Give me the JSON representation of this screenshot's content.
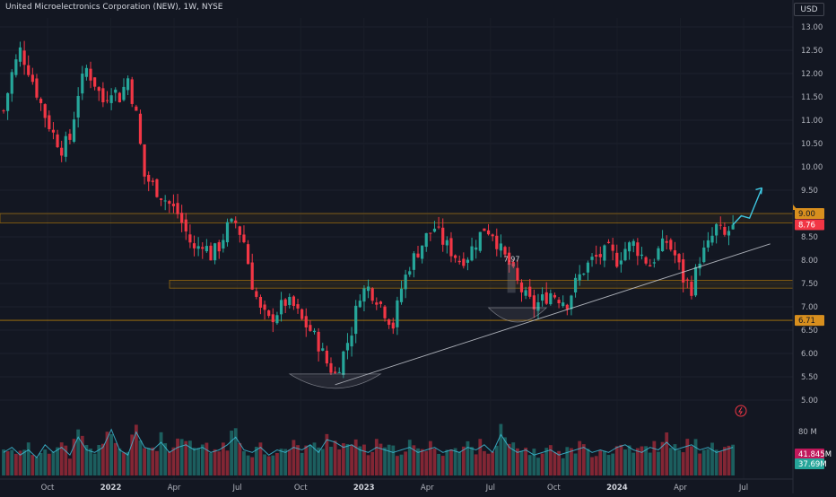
{
  "header": {
    "title": "United Microelectronics Corporation (NEW), 1W, NYSE",
    "currency": "USD"
  },
  "colors": {
    "background": "#131722",
    "up": "#26a69a",
    "down": "#f23645",
    "zone": "#f7a600",
    "trendline": "#d1d4dc",
    "projection": "#3ec6e0",
    "vol_ma": "#3ec6e0"
  },
  "chart_data": {
    "type": "candlestick",
    "timeframe": "1W",
    "price_axis": {
      "ticks": [
        "13.00",
        "12.50",
        "12.00",
        "11.50",
        "11.00",
        "10.50",
        "10.00",
        "9.50",
        "9.00",
        "8.50",
        "8.00",
        "7.50",
        "7.00",
        "6.50",
        "6.00",
        "5.50",
        "5.00"
      ],
      "range": [
        4.55,
        13.25
      ]
    },
    "time_axis": {
      "ticks": [
        {
          "label": "Oct",
          "bold": false
        },
        {
          "label": "2022",
          "bold": true
        },
        {
          "label": "Apr",
          "bold": false
        },
        {
          "label": "Jul",
          "bold": false
        },
        {
          "label": "Oct",
          "bold": false
        },
        {
          "label": "2023",
          "bold": true
        },
        {
          "label": "Apr",
          "bold": false
        },
        {
          "label": "Jul",
          "bold": false
        },
        {
          "label": "Oct",
          "bold": false
        },
        {
          "label": "2024",
          "bold": true
        },
        {
          "label": "Apr",
          "bold": false
        },
        {
          "label": "Jul",
          "bold": false
        }
      ]
    },
    "price_path": [
      [
        0,
        11.2
      ],
      [
        2,
        12.0
      ],
      [
        4,
        12.5
      ],
      [
        6,
        12.1
      ],
      [
        8,
        11.6
      ],
      [
        10,
        11.1
      ],
      [
        12,
        10.7
      ],
      [
        14,
        10.4
      ],
      [
        16,
        10.6
      ],
      [
        18,
        11.6
      ],
      [
        20,
        12.1
      ],
      [
        22,
        11.8
      ],
      [
        24,
        11.4
      ],
      [
        26,
        11.7
      ],
      [
        28,
        11.5
      ],
      [
        30,
        11.9
      ],
      [
        32,
        11.1
      ],
      [
        34,
        9.8
      ],
      [
        36,
        9.6
      ],
      [
        38,
        9.4
      ],
      [
        40,
        9.2
      ],
      [
        42,
        9.0
      ],
      [
        44,
        8.6
      ],
      [
        46,
        8.2
      ],
      [
        48,
        8.4
      ],
      [
        50,
        8.1
      ],
      [
        52,
        8.3
      ],
      [
        54,
        8.7
      ],
      [
        56,
        8.8
      ],
      [
        58,
        8.4
      ],
      [
        60,
        7.5
      ],
      [
        62,
        6.9
      ],
      [
        64,
        6.7
      ],
      [
        66,
        6.9
      ],
      [
        68,
        7.1
      ],
      [
        70,
        7.0
      ],
      [
        72,
        6.7
      ],
      [
        74,
        6.5
      ],
      [
        76,
        6.2
      ],
      [
        78,
        5.8
      ],
      [
        80,
        5.55
      ],
      [
        82,
        6.0
      ],
      [
        84,
        6.5
      ],
      [
        86,
        7.3
      ],
      [
        88,
        7.4
      ],
      [
        90,
        7.2
      ],
      [
        92,
        6.9
      ],
      [
        94,
        6.6
      ],
      [
        96,
        7.4
      ],
      [
        98,
        7.9
      ],
      [
        100,
        8.2
      ],
      [
        102,
        8.5
      ],
      [
        104,
        8.7
      ],
      [
        106,
        8.4
      ],
      [
        108,
        8.2
      ],
      [
        110,
        8.0
      ],
      [
        112,
        8.1
      ],
      [
        114,
        8.4
      ],
      [
        116,
        8.7
      ],
      [
        118,
        8.6
      ],
      [
        120,
        8.2
      ],
      [
        122,
        7.9
      ],
      [
        124,
        7.5
      ],
      [
        126,
        7.2
      ],
      [
        128,
        7.0
      ],
      [
        130,
        7.15
      ],
      [
        132,
        7.3
      ],
      [
        134,
        7.2
      ],
      [
        136,
        7.1
      ],
      [
        138,
        7.5
      ],
      [
        140,
        7.8
      ],
      [
        142,
        8.0
      ],
      [
        144,
        8.1
      ],
      [
        146,
        8.2
      ],
      [
        148,
        8.0
      ],
      [
        150,
        8.25
      ],
      [
        152,
        8.35
      ],
      [
        154,
        8.1
      ],
      [
        156,
        7.9
      ],
      [
        158,
        8.2
      ],
      [
        160,
        8.4
      ],
      [
        162,
        8.1
      ],
      [
        164,
        7.6
      ],
      [
        166,
        7.4
      ],
      [
        168,
        8.05
      ],
      [
        170,
        8.3
      ],
      [
        172,
        8.7
      ],
      [
        174,
        8.5
      ],
      [
        176,
        8.76
      ]
    ],
    "volume_path": [
      [
        0,
        0.45
      ],
      [
        2,
        0.55
      ],
      [
        4,
        0.4
      ],
      [
        6,
        0.5
      ],
      [
        8,
        0.35
      ],
      [
        10,
        0.6
      ],
      [
        12,
        0.45
      ],
      [
        14,
        0.55
      ],
      [
        16,
        0.4
      ],
      [
        18,
        0.75
      ],
      [
        20,
        0.5
      ],
      [
        22,
        0.45
      ],
      [
        24,
        0.55
      ],
      [
        26,
        0.9
      ],
      [
        28,
        0.5
      ],
      [
        30,
        0.4
      ],
      [
        32,
        0.85
      ],
      [
        34,
        0.55
      ],
      [
        36,
        0.5
      ],
      [
        38,
        0.65
      ],
      [
        40,
        0.45
      ],
      [
        42,
        0.55
      ],
      [
        44,
        0.6
      ],
      [
        46,
        0.5
      ],
      [
        48,
        0.55
      ],
      [
        50,
        0.45
      ],
      [
        52,
        0.5
      ],
      [
        54,
        0.6
      ],
      [
        56,
        0.75
      ],
      [
        58,
        0.5
      ],
      [
        60,
        0.45
      ],
      [
        62,
        0.55
      ],
      [
        64,
        0.4
      ],
      [
        66,
        0.5
      ],
      [
        68,
        0.45
      ],
      [
        70,
        0.55
      ],
      [
        72,
        0.5
      ],
      [
        74,
        0.6
      ],
      [
        76,
        0.45
      ],
      [
        78,
        0.7
      ],
      [
        80,
        0.65
      ],
      [
        82,
        0.55
      ],
      [
        84,
        0.6
      ],
      [
        86,
        0.5
      ],
      [
        88,
        0.45
      ],
      [
        90,
        0.55
      ],
      [
        92,
        0.5
      ],
      [
        94,
        0.45
      ],
      [
        96,
        0.5
      ],
      [
        98,
        0.55
      ],
      [
        100,
        0.45
      ],
      [
        102,
        0.5
      ],
      [
        104,
        0.55
      ],
      [
        106,
        0.45
      ],
      [
        108,
        0.5
      ],
      [
        110,
        0.45
      ],
      [
        112,
        0.55
      ],
      [
        114,
        0.5
      ],
      [
        116,
        0.6
      ],
      [
        118,
        0.45
      ],
      [
        120,
        0.8
      ],
      [
        122,
        0.55
      ],
      [
        124,
        0.45
      ],
      [
        126,
        0.5
      ],
      [
        128,
        0.4
      ],
      [
        130,
        0.45
      ],
      [
        132,
        0.5
      ],
      [
        134,
        0.4
      ],
      [
        136,
        0.45
      ],
      [
        138,
        0.5
      ],
      [
        140,
        0.55
      ],
      [
        142,
        0.45
      ],
      [
        144,
        0.5
      ],
      [
        146,
        0.45
      ],
      [
        148,
        0.55
      ],
      [
        150,
        0.6
      ],
      [
        152,
        0.5
      ],
      [
        154,
        0.45
      ],
      [
        156,
        0.55
      ],
      [
        158,
        0.5
      ],
      [
        160,
        0.65
      ],
      [
        162,
        0.5
      ],
      [
        164,
        0.55
      ],
      [
        166,
        0.6
      ],
      [
        168,
        0.5
      ],
      [
        170,
        0.55
      ],
      [
        172,
        0.45
      ],
      [
        174,
        0.5
      ],
      [
        176,
        0.55
      ]
    ],
    "volume_axis": {
      "label": "80 M",
      "volume_badge": "41.845M",
      "ma_badge": "37.69M"
    },
    "current_price": {
      "value": 8.76,
      "label": "8.76"
    },
    "resistance_zone": {
      "upper": 9.0,
      "lower": 8.8,
      "upper_label": "9.00"
    },
    "support_zone": {
      "upper": 7.57,
      "lower": 7.4
    },
    "support_line": {
      "value": 6.71,
      "label": "6.71"
    },
    "trendline": {
      "start": [
        80,
        5.33
      ],
      "end": [
        185,
        8.35
      ]
    },
    "projection_path": [
      [
        176,
        8.76
      ],
      [
        178,
        8.95
      ],
      [
        180,
        8.9
      ],
      [
        183,
        9.55
      ]
    ],
    "annotations": [
      {
        "text": "7.97",
        "x": 122,
        "y": 7.97
      }
    ],
    "bowls": [
      {
        "center": 80,
        "width": 11,
        "bottom": 5.33
      },
      {
        "center": 124,
        "width": 7,
        "bottom": 6.75
      }
    ]
  }
}
